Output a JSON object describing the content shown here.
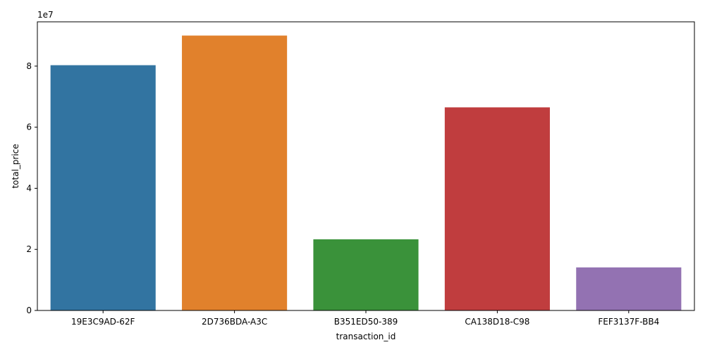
{
  "chart_data": {
    "type": "bar",
    "categories": [
      "19E3C9AD-62F",
      "2D736BDA-A3C",
      "B351ED50-389",
      "CA138D18-C98",
      "FEF3137F-BB4"
    ],
    "values": [
      80300000,
      90000000,
      23300000,
      66500000,
      14100000
    ],
    "colors": [
      "#3274a1",
      "#e1812c",
      "#3a923a",
      "#c03d3e",
      "#9372b2"
    ],
    "xlabel": "transaction_id",
    "ylabel": "total_price",
    "ylim": [
      0,
      94500000
    ],
    "yticks": [
      0,
      20000000,
      40000000,
      60000000,
      80000000
    ],
    "ytick_labels": [
      "0",
      "2",
      "4",
      "6",
      "8"
    ],
    "offset_text": "1e7",
    "grid": false
  }
}
